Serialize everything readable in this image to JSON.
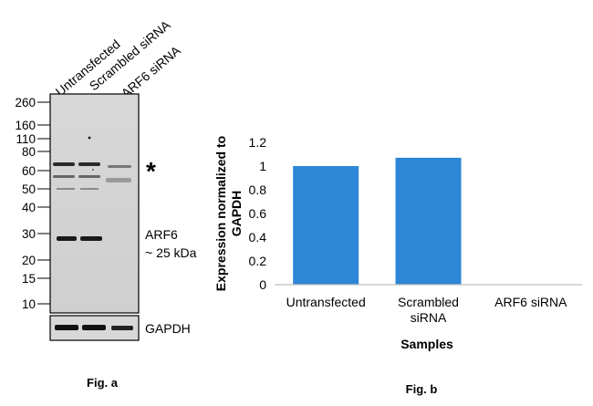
{
  "panel_a": {
    "lane_labels": [
      "Untransfected",
      "Scrambled siRNA",
      "ARF6 siRNA"
    ],
    "marker_labels": [
      "260",
      "160",
      "110",
      "80",
      "60",
      "50",
      "40",
      "30",
      "20",
      "15",
      "10"
    ],
    "asterisk": "*",
    "band_label_name": "ARF6",
    "band_label_size": "~ 25 kDa",
    "loading_control_label": "GAPDH",
    "caption": "Fig. a"
  },
  "panel_b": {
    "caption": "Fig. b"
  },
  "chart_data": {
    "type": "bar",
    "categories": [
      "Untransfected",
      "Scrambled siRNA",
      "ARF6 siRNA"
    ],
    "category_label_lines": [
      [
        "Untransfected"
      ],
      [
        "Scrambled",
        "siRNA"
      ],
      [
        "ARF6 siRNA"
      ]
    ],
    "series": [
      {
        "values": [
          1.0,
          1.07,
          0
        ],
        "color": "#2e86d6"
      }
    ],
    "xlabel": "Samples",
    "ylabel_lines": [
      "Expression normalized to",
      "GAPDH"
    ],
    "ylim": [
      0,
      1.2
    ],
    "yticks": [
      0,
      0.2,
      0.4,
      0.6,
      0.8,
      1,
      1.2
    ],
    "ytick_labels": [
      "0",
      "0.2",
      "0.4",
      "0.6",
      "0.8",
      "1",
      "1.2"
    ],
    "grid": false,
    "legend": "none"
  }
}
